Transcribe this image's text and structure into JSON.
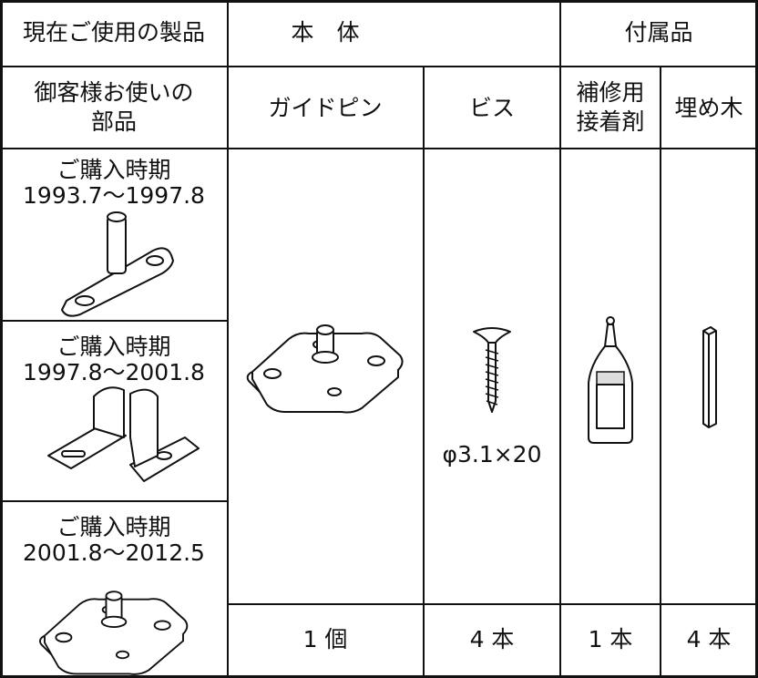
{
  "table": {
    "header": [
      "現在ご使用の製品",
      "本　体",
      "付属品"
    ],
    "subheader": {
      "product_col": [
        "御客様お使いの",
        "部品"
      ],
      "items": [
        [
          "ガイドピン"
        ],
        [
          "ビス"
        ],
        [
          "補修用",
          "接着剤"
        ],
        [
          "埋め木"
        ]
      ]
    },
    "products": [
      {
        "label": "ご購入時期",
        "period": "1993.7～1997.8"
      },
      {
        "label": "ご購入時期",
        "period": "1997.8～2001.8"
      },
      {
        "label": "ご購入時期",
        "period": "2001.8～2012.5"
      }
    ],
    "screw_spec": "φ3.1×20",
    "quantities": [
      "1 個",
      "4 本",
      "1 本",
      "4 本"
    ]
  }
}
